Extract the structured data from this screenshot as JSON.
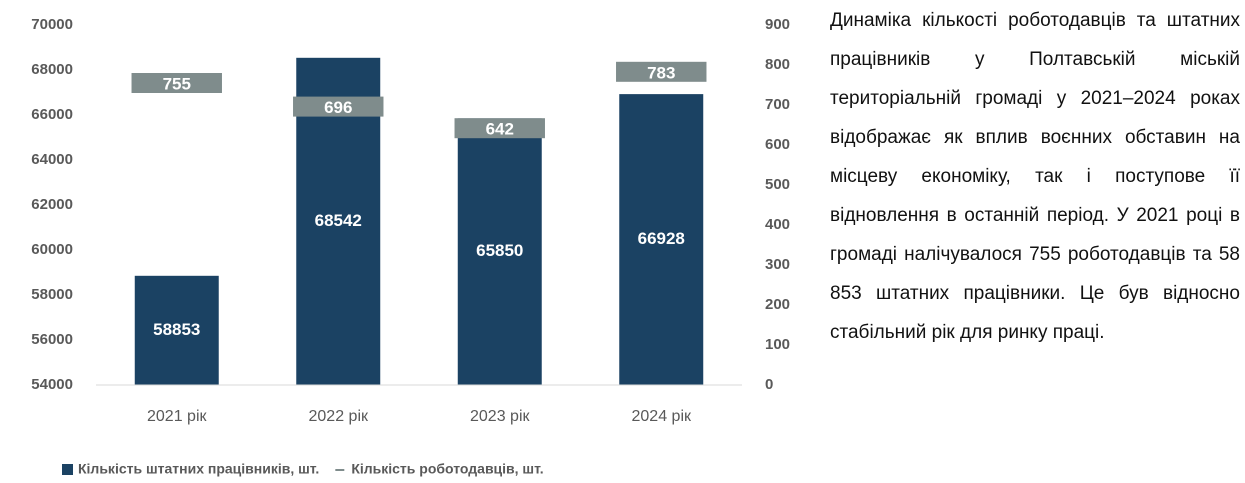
{
  "chart_data": {
    "type": "bar",
    "categories": [
      "2021 рік",
      "2022 рік",
      "2023 рік",
      "2024 рік"
    ],
    "series": [
      {
        "name": "Кількість штатних працівників, шт.",
        "type": "bar",
        "color": "#1b4263",
        "values": [
          58853,
          68542,
          65850,
          66928
        ]
      },
      {
        "name": "Кількість роботодавців, шт.",
        "type": "line",
        "axis": "y2",
        "color": "#7f8c8c",
        "values": [
          755,
          696,
          642,
          783
        ]
      }
    ],
    "ylim": [
      54000,
      70000
    ],
    "yticks": [
      54000,
      56000,
      58000,
      60000,
      62000,
      64000,
      66000,
      68000,
      70000
    ],
    "y2lim": [
      0,
      900
    ],
    "y2ticks": [
      0,
      100,
      200,
      300,
      400,
      500,
      600,
      700,
      800,
      900
    ],
    "legend": "bottom"
  },
  "text": {
    "paragraph": "Динаміка кількості роботодавців та штатних працівників у Полтавській міській територіальній громаді у 2021–2024 роках відображає як вплив воєнних обставин на місцеву економіку, так і поступове її відновлення в останній період. У 2021 році в громаді налічувалося 755 роботодавців та 58 853 штатних працівники. Це був відносно стабільний рік для ринку праці."
  }
}
